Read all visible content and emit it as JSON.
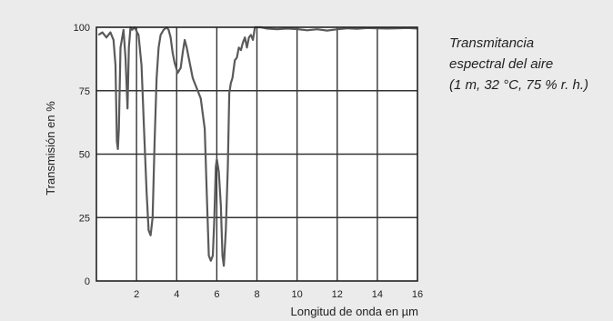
{
  "chart_data": {
    "type": "line",
    "title": "",
    "xlabel": "Longitud de onda en µm",
    "ylabel": "Transmisión en %",
    "xlim": [
      0,
      16
    ],
    "ylim": [
      0,
      100
    ],
    "x_ticks": [
      2,
      4,
      6,
      8,
      10,
      12,
      14,
      16
    ],
    "x_tick_labels": [
      "2",
      "4",
      "6",
      "8",
      "10",
      "12",
      "14",
      "16"
    ],
    "y_ticks": [
      0,
      25,
      50,
      75,
      100
    ],
    "y_tick_labels": [
      "0",
      "25",
      "50",
      "75",
      "100"
    ],
    "grid": true,
    "annotation": [
      "Transmitancia",
      "espectral del aire",
      "(1 m, 32 °C, 75 % r. h.)"
    ],
    "series": [
      {
        "color": "#5a5a5a",
        "x": [
          0.1,
          0.3,
          0.5,
          0.7,
          0.85,
          0.95,
          1.02,
          1.07,
          1.12,
          1.2,
          1.35,
          1.45,
          1.55,
          1.62,
          1.7,
          1.78,
          1.9,
          2.1,
          2.25,
          2.4,
          2.5,
          2.6,
          2.7,
          2.8,
          2.9,
          3.0,
          3.1,
          3.2,
          3.35,
          3.5,
          3.6,
          3.7,
          3.8,
          3.9,
          4.05,
          4.2,
          4.3,
          4.4,
          4.5,
          4.6,
          4.7,
          4.8,
          5.0,
          5.2,
          5.4,
          5.5,
          5.6,
          5.7,
          5.8,
          5.88,
          5.95,
          6.0,
          6.1,
          6.2,
          6.28,
          6.35,
          6.45,
          6.55,
          6.62,
          6.7,
          6.78,
          6.9,
          7.0,
          7.1,
          7.2,
          7.3,
          7.4,
          7.5,
          7.6,
          7.7,
          7.8,
          7.9,
          8.0,
          8.2,
          8.5,
          9.0,
          9.5,
          10.0,
          10.5,
          11.0,
          11.5,
          12.0,
          12.5,
          13.0,
          13.5,
          14.0,
          14.5,
          15.0,
          15.5,
          16.0
        ],
        "y": [
          97,
          98,
          96,
          98,
          95,
          85,
          55,
          52,
          60,
          92,
          99,
          88,
          68,
          92,
          100,
          99,
          100,
          97,
          85,
          55,
          35,
          20,
          18,
          25,
          55,
          80,
          92,
          97,
          99,
          100,
          99,
          96,
          90,
          86,
          82,
          84,
          90,
          95,
          92,
          88,
          84,
          80,
          76,
          72,
          60,
          35,
          10,
          8,
          10,
          25,
          45,
          48,
          43,
          30,
          10,
          6,
          20,
          45,
          74,
          78,
          80,
          87,
          88,
          92,
          91,
          94,
          96,
          92,
          96,
          97,
          95,
          100,
          100,
          100,
          99.5,
          99.2,
          99.5,
          99.3,
          98.8,
          99.2,
          98.7,
          99.2,
          99.6,
          99.4,
          99.7,
          99.6,
          99.5,
          99.6,
          99.7,
          99.5
        ]
      }
    ]
  }
}
